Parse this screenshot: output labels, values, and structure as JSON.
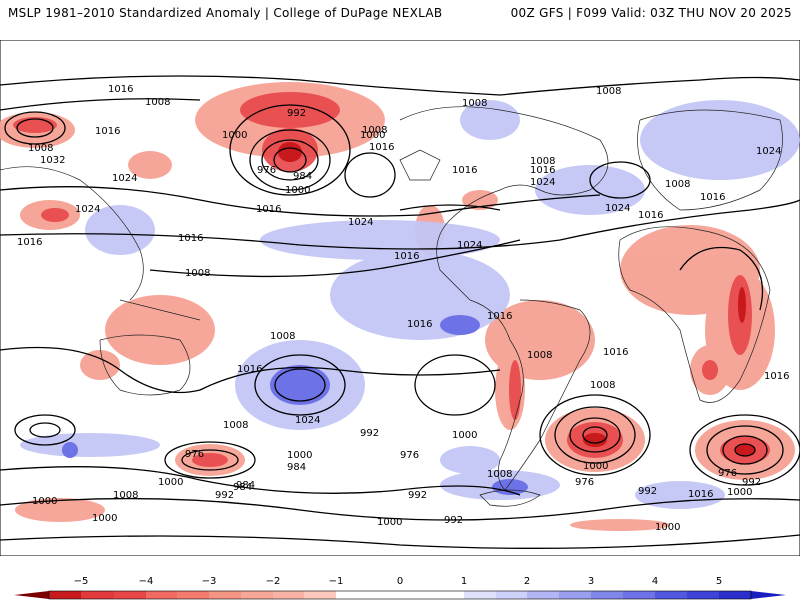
{
  "header": {
    "left": "MSLP 1981–2010 Standardized Anomaly | College of DuPage NEXLAB",
    "right": "00Z GFS | F099 Valid: 03Z THU NOV 20 2025"
  },
  "contour_labels": [
    {
      "id": "l1",
      "text": "1016"
    },
    {
      "id": "l2",
      "text": "1008"
    },
    {
      "id": "l3",
      "text": "1016"
    },
    {
      "id": "l4",
      "text": "1008"
    },
    {
      "id": "l5",
      "text": "1032"
    },
    {
      "id": "l6",
      "text": "1024"
    },
    {
      "id": "l7",
      "text": "1024"
    },
    {
      "id": "l8",
      "text": "1016"
    },
    {
      "id": "l9",
      "text": "992"
    },
    {
      "id": "l10",
      "text": "1000"
    },
    {
      "id": "l11",
      "text": "976"
    },
    {
      "id": "l12",
      "text": "984"
    },
    {
      "id": "l13",
      "text": "1000"
    },
    {
      "id": "l14",
      "text": "1016"
    },
    {
      "id": "l15",
      "text": "1024"
    },
    {
      "id": "l16",
      "text": "1016"
    },
    {
      "id": "l17",
      "text": "1008"
    },
    {
      "id": "l18",
      "text": "1016"
    },
    {
      "id": "l19",
      "text": "1008"
    },
    {
      "id": "l20",
      "text": "1000"
    },
    {
      "id": "l21",
      "text": "1008"
    },
    {
      "id": "l22",
      "text": "1016"
    },
    {
      "id": "l23",
      "text": "1024"
    },
    {
      "id": "l24",
      "text": "1024"
    },
    {
      "id": "l25",
      "text": "1016"
    },
    {
      "id": "l26",
      "text": "1016"
    },
    {
      "id": "l27",
      "text": "1008"
    },
    {
      "id": "l28",
      "text": "1008"
    },
    {
      "id": "l29",
      "text": "1016"
    },
    {
      "id": "l30",
      "text": "1024"
    },
    {
      "id": "l31",
      "text": "1016"
    },
    {
      "id": "l32",
      "text": "1008"
    },
    {
      "id": "l33",
      "text": "1016"
    },
    {
      "id": "l34",
      "text": "1008"
    },
    {
      "id": "l35",
      "text": "1016"
    },
    {
      "id": "l36",
      "text": "1016"
    },
    {
      "id": "l37",
      "text": "1008"
    },
    {
      "id": "l38",
      "text": "1024"
    },
    {
      "id": "l39",
      "text": "1016"
    },
    {
      "id": "l40",
      "text": "1008"
    },
    {
      "id": "l41",
      "text": "1024"
    },
    {
      "id": "l42",
      "text": "1016"
    },
    {
      "id": "l43",
      "text": "1008"
    },
    {
      "id": "l44",
      "text": "992"
    },
    {
      "id": "l45",
      "text": "1000"
    },
    {
      "id": "l46",
      "text": "984"
    },
    {
      "id": "l47",
      "text": "976"
    },
    {
      "id": "l48",
      "text": "1000"
    },
    {
      "id": "l49",
      "text": "984"
    },
    {
      "id": "l50",
      "text": "992"
    },
    {
      "id": "l51",
      "text": "976"
    },
    {
      "id": "l52",
      "text": "1000"
    },
    {
      "id": "l53",
      "text": "976"
    },
    {
      "id": "l54",
      "text": "992"
    },
    {
      "id": "l55",
      "text": "976"
    },
    {
      "id": "l56",
      "text": "992"
    },
    {
      "id": "l57",
      "text": "1000"
    },
    {
      "id": "l58",
      "text": "1016"
    },
    {
      "id": "l59",
      "text": "1008"
    },
    {
      "id": "l60",
      "text": "1000"
    },
    {
      "id": "l61",
      "text": "1008"
    },
    {
      "id": "l62",
      "text": "1000"
    },
    {
      "id": "l63",
      "text": "984"
    },
    {
      "id": "l64",
      "text": "992"
    },
    {
      "id": "l65",
      "text": "1000"
    },
    {
      "id": "l66",
      "text": "1000"
    },
    {
      "id": "l67",
      "text": "992"
    },
    {
      "id": "l68",
      "text": "1000"
    }
  ],
  "colorbar": {
    "ticks": [
      "−5",
      "−4",
      "−3",
      "−2",
      "−1",
      "0",
      "1",
      "2",
      "3",
      "4",
      "5"
    ],
    "negative_colors": [
      "#7a0000",
      "#c8191c",
      "#e8474a",
      "#f07b6e",
      "#f9b3a6",
      "#fde0d9"
    ],
    "positive_colors": [
      "#e4e6fb",
      "#c3c6f6",
      "#9a9ff0",
      "#6d72e6",
      "#3e43d9",
      "#1a1fc0"
    ],
    "neutral_color": "#ffffff"
  }
}
